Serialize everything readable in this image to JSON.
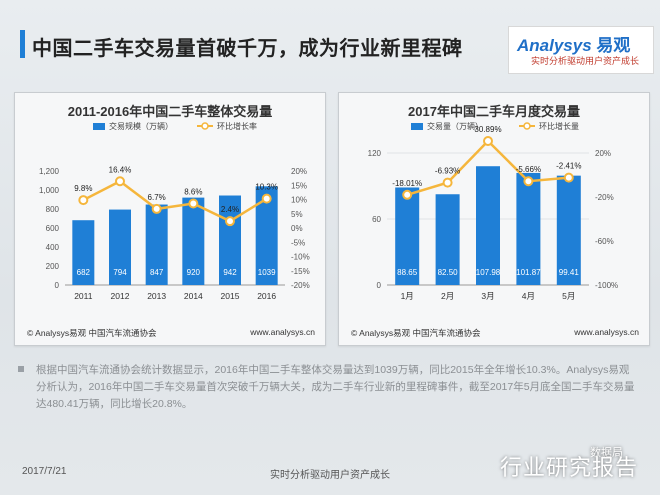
{
  "header": {
    "title": "中国二手车交易量首破千万，成为行业新里程碑",
    "logo_en": "Analysys",
    "logo_cn": "易观",
    "logo_sub": "实时分析驱动用户资产成长"
  },
  "colors": {
    "bar": "#1f7fd6",
    "line": "#f5b63c",
    "accent": "#1f7fd6"
  },
  "chart_data": [
    {
      "type": "bar",
      "title": "2011-2016年中国二手车整体交易量",
      "legend_bar": "交易规模（万辆）",
      "legend_line": "环比增长率",
      "categories": [
        "2011",
        "2012",
        "2013",
        "2014",
        "2015",
        "2016"
      ],
      "values": [
        682,
        794,
        847,
        920,
        942,
        1039
      ],
      "value_labels": [
        "682",
        "794",
        "847",
        "920",
        "942",
        "1039"
      ],
      "growth": [
        9.8,
        16.4,
        6.7,
        8.6,
        2.4,
        10.3
      ],
      "growth_labels": [
        "9.8%",
        "16.4%",
        "6.7%",
        "8.6%",
        "2.4%",
        "10.3%"
      ],
      "y_ticks": [
        "0",
        "200",
        "400",
        "600",
        "800",
        "1,000",
        "1,200"
      ],
      "y2_ticks": [
        "-20%",
        "-15%",
        "-10%",
        "-5%",
        "0%",
        "5%",
        "10%",
        "15%",
        "20%"
      ],
      "ylim": [
        0,
        1200
      ],
      "y2lim": [
        -20,
        20
      ],
      "source": "© Analysys易观 中国汽车流通协会",
      "website": "www.analysys.cn"
    },
    {
      "type": "bar",
      "title": "2017年中国二手车月度交易量",
      "legend_bar": "交易量（万辆）",
      "legend_line": "环比增长量",
      "categories": [
        "1月",
        "2月",
        "3月",
        "4月",
        "5月"
      ],
      "values": [
        88.65,
        82.5,
        107.98,
        101.87,
        99.41
      ],
      "value_labels": [
        "88.65",
        "82.50",
        "107.98",
        "101.87",
        "99.41"
      ],
      "growth": [
        -18.01,
        -6.93,
        30.89,
        -5.66,
        -2.41
      ],
      "growth_labels": [
        "-18.01%",
        "-6.93%",
        "30.89%",
        "-5.66%",
        "-2.41%"
      ],
      "y_ticks": [
        "0",
        "60",
        "120"
      ],
      "y2_ticks": [
        "-100%",
        "-60%",
        "-20%",
        "20%"
      ],
      "ylim": [
        0,
        120
      ],
      "y2lim": [
        -100,
        20
      ],
      "source": "© Analysys易观 中国汽车流通协会",
      "website": "www.analysys.cn"
    }
  ],
  "note": "根据中国汽车流通协会统计数据显示，2016年中国二手车整体交易量达到1039万辆，同比2015年全年增长10.3%。Analysys易观分析认为，2016年中国二手车交易量首次突破千万辆大关，成为二手车行业新的里程碑事件，截至2017年5月底全国二手车交易量达480.41万辆，同比增长20.8%。",
  "footer": {
    "date": "2017/7/21",
    "center": "实时分析驱动用户资产成长",
    "watermark": "行业研究报告",
    "watermark_small": "数据局"
  }
}
